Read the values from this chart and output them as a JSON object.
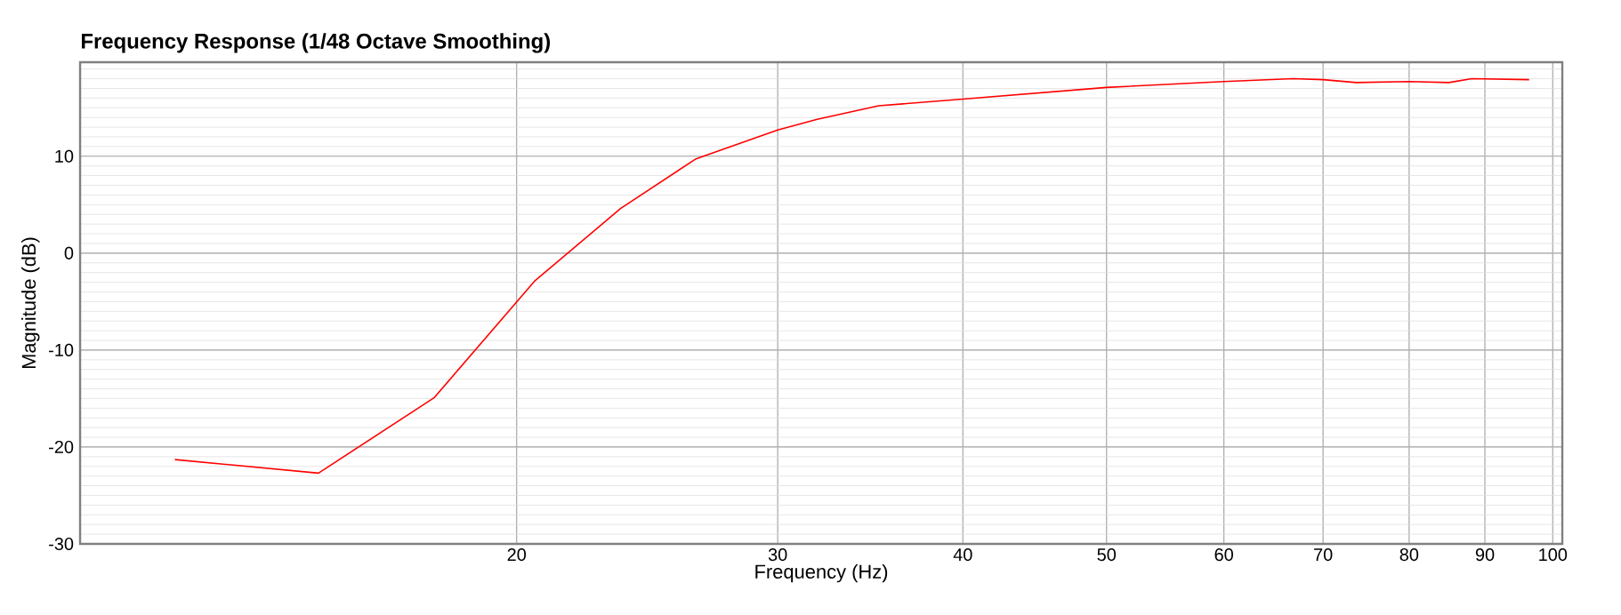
{
  "chart_data": {
    "type": "line",
    "title": "Frequency Response (1/48 Octave Smoothing)",
    "xlabel": "Frequency (Hz)",
    "ylabel": "Magnitude (dB)",
    "x": [
      11.76,
      14.7,
      17.6,
      20.56,
      23.5,
      26.4,
      30,
      31.9,
      35.1,
      40,
      50,
      60,
      66.8,
      70,
      73.7,
      80,
      85.1,
      88.2,
      96.4
    ],
    "series": [
      {
        "color": "#ff0000",
        "values": [
          -21.3,
          -22.7,
          -14.9,
          -2.9,
          4.6,
          9.7,
          12.7,
          13.8,
          15.2,
          15.9,
          17.1,
          17.7,
          18.0,
          17.9,
          17.6,
          17.7,
          17.6,
          18.0,
          17.9
        ]
      }
    ],
    "log": "x",
    "xlim": [
      10.15,
      101.5
    ],
    "ylim": [
      -30,
      19.7
    ],
    "xticks": [
      20,
      30,
      40,
      50,
      60,
      70,
      80,
      90,
      100
    ],
    "yticks": [
      -30,
      -20,
      -10,
      0,
      10
    ],
    "grid": true,
    "marker": "none",
    "line_style": "solid"
  }
}
